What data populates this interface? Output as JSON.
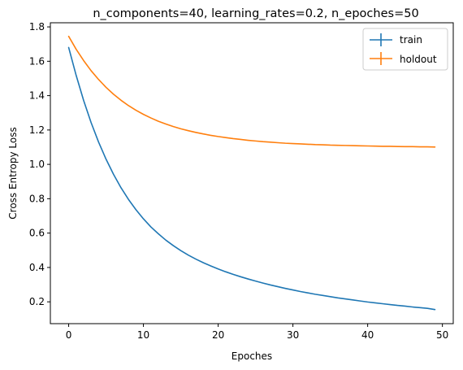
{
  "chart_data": {
    "type": "line",
    "title": "n_components=40, learning_rates=0.2, n_epoches=50",
    "xlabel": "Epoches",
    "ylabel": "Cross Entropy Loss",
    "xlim": [
      -2.45,
      51.45
    ],
    "ylim": [
      0.073,
      1.824
    ],
    "xticks": [
      0,
      10,
      20,
      30,
      40,
      50
    ],
    "yticks": [
      0.2,
      0.4,
      0.6,
      0.8,
      1.0,
      1.2,
      1.4,
      1.6,
      1.8
    ],
    "ytick_labels": [
      "0.2",
      "0.4",
      "0.6",
      "0.8",
      "1.0",
      "1.2",
      "1.4",
      "1.6",
      "1.8"
    ],
    "grid": false,
    "legend_position": "top-right",
    "series": [
      {
        "name": "train",
        "color": "#1f77b4",
        "x": [
          0,
          1,
          2,
          3,
          4,
          5,
          6,
          7,
          8,
          9,
          10,
          11,
          12,
          13,
          14,
          15,
          16,
          17,
          18,
          19,
          20,
          21,
          22,
          23,
          24,
          25,
          26,
          27,
          28,
          29,
          30,
          31,
          32,
          33,
          34,
          35,
          36,
          37,
          38,
          39,
          40,
          41,
          42,
          43,
          44,
          45,
          46,
          47,
          48,
          49
        ],
        "values": [
          1.68,
          1.518,
          1.372,
          1.243,
          1.13,
          1.03,
          0.942,
          0.864,
          0.796,
          0.736,
          0.683,
          0.636,
          0.596,
          0.559,
          0.527,
          0.498,
          0.472,
          0.449,
          0.428,
          0.409,
          0.391,
          0.375,
          0.36,
          0.346,
          0.333,
          0.321,
          0.309,
          0.298,
          0.288,
          0.278,
          0.269,
          0.26,
          0.252,
          0.244,
          0.237,
          0.23,
          0.223,
          0.217,
          0.211,
          0.205,
          0.199,
          0.194,
          0.189,
          0.184,
          0.179,
          0.175,
          0.17,
          0.166,
          0.162,
          0.155
        ]
      },
      {
        "name": "holdout",
        "color": "#ff7f0e",
        "x": [
          0,
          1,
          2,
          3,
          4,
          5,
          6,
          7,
          8,
          9,
          10,
          11,
          12,
          13,
          14,
          15,
          16,
          17,
          18,
          19,
          20,
          21,
          22,
          23,
          24,
          25,
          26,
          27,
          28,
          29,
          30,
          31,
          32,
          33,
          34,
          35,
          36,
          37,
          38,
          39,
          40,
          41,
          42,
          43,
          44,
          45,
          46,
          47,
          48,
          49
        ],
        "values": [
          1.745,
          1.67,
          1.604,
          1.545,
          1.494,
          1.448,
          1.408,
          1.373,
          1.342,
          1.315,
          1.291,
          1.27,
          1.251,
          1.235,
          1.22,
          1.207,
          1.196,
          1.186,
          1.177,
          1.169,
          1.162,
          1.156,
          1.15,
          1.145,
          1.14,
          1.136,
          1.132,
          1.129,
          1.126,
          1.123,
          1.121,
          1.119,
          1.117,
          1.115,
          1.114,
          1.112,
          1.111,
          1.11,
          1.109,
          1.108,
          1.107,
          1.106,
          1.105,
          1.105,
          1.104,
          1.103,
          1.103,
          1.102,
          1.102,
          1.101
        ]
      }
    ]
  }
}
